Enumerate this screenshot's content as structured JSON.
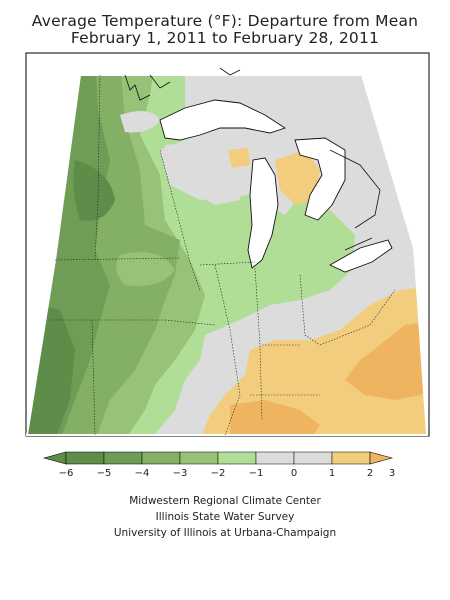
{
  "title_line1": "Average Temperature (°F): Departure from Mean",
  "title_line2": "February 1, 2011 to February 28, 2011",
  "legend": {
    "ticks": [
      "−6",
      "−5",
      "−4",
      "−3",
      "−2",
      "−1",
      "0",
      "1",
      "2",
      "3"
    ],
    "colors": [
      "#5d8d48",
      "#6f9d55",
      "#83b064",
      "#97c277",
      "#b0de96",
      "#dcdcdc",
      "#dcdcdc",
      "#f2cd7e",
      "#efb460"
    ]
  },
  "credits": [
    "Midwestern Regional Climate Center",
    "Illinois State Water Survey",
    "University of Illinois at Urbana-Champaign"
  ]
}
